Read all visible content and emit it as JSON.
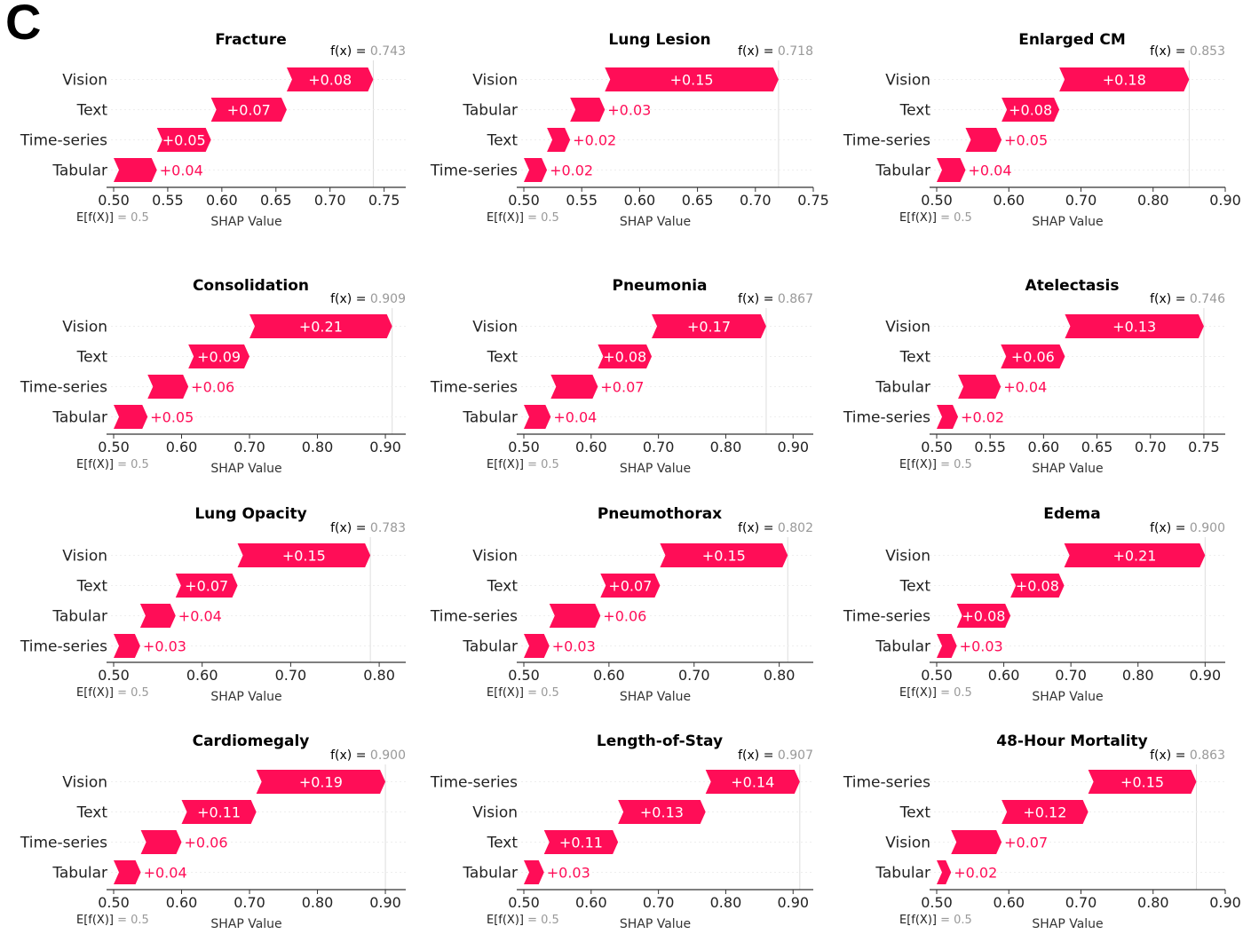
{
  "panel_label": "C",
  "colors": {
    "bar": "#ff0d57",
    "bar_text": "#ffffff",
    "axis": "#333333",
    "muted": "#999999",
    "baseline": "#dddddd"
  },
  "chart_data": [
    {
      "type": "bar",
      "title": "Fracture",
      "fx_label": "f(x) = ",
      "fx_value": "0.743",
      "base_label": "E[f(X)]",
      "base_value": "= 0.5",
      "xlabel": "SHAP Value",
      "xlim": [
        0.5,
        0.77
      ],
      "ticks": [
        0.5,
        0.55,
        0.6,
        0.65,
        0.7,
        0.75
      ],
      "tick_labels": [
        "0.50",
        "0.55",
        "0.60",
        "0.65",
        "0.70",
        "0.75"
      ],
      "features": [
        {
          "name": "Vision",
          "value": 0.08,
          "label": "+0.08"
        },
        {
          "name": "Text",
          "value": 0.07,
          "label": "+0.07"
        },
        {
          "name": "Time-series",
          "value": 0.05,
          "label": "+0.05"
        },
        {
          "name": "Tabular",
          "value": 0.04,
          "label": "+0.04"
        }
      ]
    },
    {
      "type": "bar",
      "title": "Lung Lesion",
      "fx_label": "f(x) = ",
      "fx_value": "0.718",
      "base_label": "E[f(X)]",
      "base_value": "= 0.5",
      "xlabel": "SHAP Value",
      "xlim": [
        0.5,
        0.75
      ],
      "ticks": [
        0.5,
        0.55,
        0.6,
        0.65,
        0.7,
        0.75
      ],
      "tick_labels": [
        "0.50",
        "0.55",
        "0.60",
        "0.65",
        "0.70",
        "0.75"
      ],
      "features": [
        {
          "name": "Vision",
          "value": 0.15,
          "label": "+0.15"
        },
        {
          "name": "Tabular",
          "value": 0.03,
          "label": "+0.03"
        },
        {
          "name": "Text",
          "value": 0.02,
          "label": "+0.02"
        },
        {
          "name": "Time-series",
          "value": 0.02,
          "label": "+0.02"
        }
      ]
    },
    {
      "type": "bar",
      "title": "Enlarged CM",
      "fx_label": "f(x) = ",
      "fx_value": "0.853",
      "base_label": "E[f(X)]",
      "base_value": "= 0.5",
      "xlabel": "SHAP Value",
      "xlim": [
        0.5,
        0.9
      ],
      "ticks": [
        0.5,
        0.6,
        0.7,
        0.8,
        0.9
      ],
      "tick_labels": [
        "0.50",
        "0.60",
        "0.70",
        "0.80",
        "0.90"
      ],
      "features": [
        {
          "name": "Vision",
          "value": 0.18,
          "label": "+0.18"
        },
        {
          "name": "Text",
          "value": 0.08,
          "label": "+0.08"
        },
        {
          "name": "Time-series",
          "value": 0.05,
          "label": "+0.05"
        },
        {
          "name": "Tabular",
          "value": 0.04,
          "label": "+0.04"
        }
      ]
    },
    {
      "type": "bar",
      "title": "Consolidation",
      "fx_label": "f(x) = ",
      "fx_value": "0.909",
      "base_label": "E[f(X)]",
      "base_value": "= 0.5",
      "xlabel": "SHAP Value",
      "xlim": [
        0.5,
        0.93
      ],
      "ticks": [
        0.5,
        0.6,
        0.7,
        0.8,
        0.9
      ],
      "tick_labels": [
        "0.50",
        "0.60",
        "0.70",
        "0.80",
        "0.90"
      ],
      "features": [
        {
          "name": "Vision",
          "value": 0.21,
          "label": "+0.21"
        },
        {
          "name": "Text",
          "value": 0.09,
          "label": "+0.09"
        },
        {
          "name": "Time-series",
          "value": 0.06,
          "label": "+0.06"
        },
        {
          "name": "Tabular",
          "value": 0.05,
          "label": "+0.05"
        }
      ]
    },
    {
      "type": "bar",
      "title": "Pneumonia",
      "fx_label": "f(x) = ",
      "fx_value": "0.867",
      "base_label": "E[f(X)]",
      "base_value": "= 0.5",
      "xlabel": "SHAP Value",
      "xlim": [
        0.5,
        0.93
      ],
      "ticks": [
        0.5,
        0.6,
        0.7,
        0.8,
        0.9
      ],
      "tick_labels": [
        "0.50",
        "0.60",
        "0.70",
        "0.80",
        "0.90"
      ],
      "features": [
        {
          "name": "Vision",
          "value": 0.17,
          "label": "+0.17"
        },
        {
          "name": "Text",
          "value": 0.08,
          "label": "+0.08"
        },
        {
          "name": "Time-series",
          "value": 0.07,
          "label": "+0.07"
        },
        {
          "name": "Tabular",
          "value": 0.04,
          "label": "+0.04"
        }
      ]
    },
    {
      "type": "bar",
      "title": "Atelectasis",
      "fx_label": "f(x) = ",
      "fx_value": "0.746",
      "base_label": "E[f(X)]",
      "base_value": "= 0.5",
      "xlabel": "SHAP Value",
      "xlim": [
        0.5,
        0.77
      ],
      "ticks": [
        0.5,
        0.55,
        0.6,
        0.65,
        0.7,
        0.75
      ],
      "tick_labels": [
        "0.50",
        "0.55",
        "0.60",
        "0.65",
        "0.70",
        "0.75"
      ],
      "features": [
        {
          "name": "Vision",
          "value": 0.13,
          "label": "+0.13"
        },
        {
          "name": "Text",
          "value": 0.06,
          "label": "+0.06"
        },
        {
          "name": "Tabular",
          "value": 0.04,
          "label": "+0.04"
        },
        {
          "name": "Time-series",
          "value": 0.02,
          "label": "+0.02"
        }
      ]
    },
    {
      "type": "bar",
      "title": "Lung Opacity",
      "fx_label": "f(x) = ",
      "fx_value": "0.783",
      "base_label": "E[f(X)]",
      "base_value": "= 0.5",
      "xlabel": "SHAP Value",
      "xlim": [
        0.5,
        0.83
      ],
      "ticks": [
        0.5,
        0.6,
        0.7,
        0.8
      ],
      "tick_labels": [
        "0.50",
        "0.60",
        "0.70",
        "0.80"
      ],
      "features": [
        {
          "name": "Vision",
          "value": 0.15,
          "label": "+0.15"
        },
        {
          "name": "Text",
          "value": 0.07,
          "label": "+0.07"
        },
        {
          "name": "Tabular",
          "value": 0.04,
          "label": "+0.04"
        },
        {
          "name": "Time-series",
          "value": 0.03,
          "label": "+0.03"
        }
      ]
    },
    {
      "type": "bar",
      "title": "Pneumothorax",
      "fx_label": "f(x) = ",
      "fx_value": "0.802",
      "base_label": "E[f(X)]",
      "base_value": "= 0.5",
      "xlabel": "SHAP Value",
      "xlim": [
        0.5,
        0.84
      ],
      "ticks": [
        0.5,
        0.6,
        0.7,
        0.8
      ],
      "tick_labels": [
        "0.50",
        "0.60",
        "0.70",
        "0.80"
      ],
      "features": [
        {
          "name": "Vision",
          "value": 0.15,
          "label": "+0.15"
        },
        {
          "name": "Text",
          "value": 0.07,
          "label": "+0.07"
        },
        {
          "name": "Time-series",
          "value": 0.06,
          "label": "+0.06"
        },
        {
          "name": "Tabular",
          "value": 0.03,
          "label": "+0.03"
        }
      ]
    },
    {
      "type": "bar",
      "title": "Edema",
      "fx_label": "f(x) = ",
      "fx_value": "0.900",
      "base_label": "E[f(X)]",
      "base_value": "= 0.5",
      "xlabel": "SHAP Value",
      "xlim": [
        0.5,
        0.93
      ],
      "ticks": [
        0.5,
        0.6,
        0.7,
        0.8,
        0.9
      ],
      "tick_labels": [
        "0.50",
        "0.60",
        "0.70",
        "0.80",
        "0.90"
      ],
      "features": [
        {
          "name": "Vision",
          "value": 0.21,
          "label": "+0.21"
        },
        {
          "name": "Text",
          "value": 0.08,
          "label": "+0.08"
        },
        {
          "name": "Time-series",
          "value": 0.08,
          "label": "+0.08"
        },
        {
          "name": "Tabular",
          "value": 0.03,
          "label": "+0.03"
        }
      ]
    },
    {
      "type": "bar",
      "title": "Cardiomegaly",
      "fx_label": "f(x) = ",
      "fx_value": "0.900",
      "base_label": "E[f(X)]",
      "base_value": "= 0.5",
      "xlabel": "SHAP Value",
      "xlim": [
        0.5,
        0.93
      ],
      "ticks": [
        0.5,
        0.6,
        0.7,
        0.8,
        0.9
      ],
      "tick_labels": [
        "0.50",
        "0.60",
        "0.70",
        "0.80",
        "0.90"
      ],
      "features": [
        {
          "name": "Vision",
          "value": 0.19,
          "label": "+0.19"
        },
        {
          "name": "Text",
          "value": 0.11,
          "label": "+0.11"
        },
        {
          "name": "Time-series",
          "value": 0.06,
          "label": "+0.06"
        },
        {
          "name": "Tabular",
          "value": 0.04,
          "label": "+0.04"
        }
      ]
    },
    {
      "type": "bar",
      "title": "Length-of-Stay",
      "fx_label": "f(x) = ",
      "fx_value": "0.907",
      "base_label": "E[f(X)]",
      "base_value": "= 0.5",
      "xlabel": "SHAP Value",
      "xlim": [
        0.5,
        0.93
      ],
      "ticks": [
        0.5,
        0.6,
        0.7,
        0.8,
        0.9
      ],
      "tick_labels": [
        "0.50",
        "0.60",
        "0.70",
        "0.80",
        "0.90"
      ],
      "features": [
        {
          "name": "Time-series",
          "value": 0.14,
          "label": "+0.14"
        },
        {
          "name": "Vision",
          "value": 0.13,
          "label": "+0.13"
        },
        {
          "name": "Text",
          "value": 0.11,
          "label": "+0.11"
        },
        {
          "name": "Tabular",
          "value": 0.03,
          "label": "+0.03"
        }
      ]
    },
    {
      "type": "bar",
      "title": "48-Hour Mortality",
      "fx_label": "f(x) = ",
      "fx_value": "0.863",
      "base_label": "E[f(X)]",
      "base_value": "= 0.5",
      "xlabel": "SHAP Value",
      "xlim": [
        0.5,
        0.9
      ],
      "ticks": [
        0.5,
        0.6,
        0.7,
        0.8,
        0.9
      ],
      "tick_labels": [
        "0.50",
        "0.60",
        "0.70",
        "0.80",
        "0.90"
      ],
      "features": [
        {
          "name": "Time-series",
          "value": 0.15,
          "label": "+0.15"
        },
        {
          "name": "Text",
          "value": 0.12,
          "label": "+0.12"
        },
        {
          "name": "Vision",
          "value": 0.07,
          "label": "+0.07"
        },
        {
          "name": "Tabular",
          "value": 0.02,
          "label": "+0.02"
        }
      ]
    }
  ]
}
